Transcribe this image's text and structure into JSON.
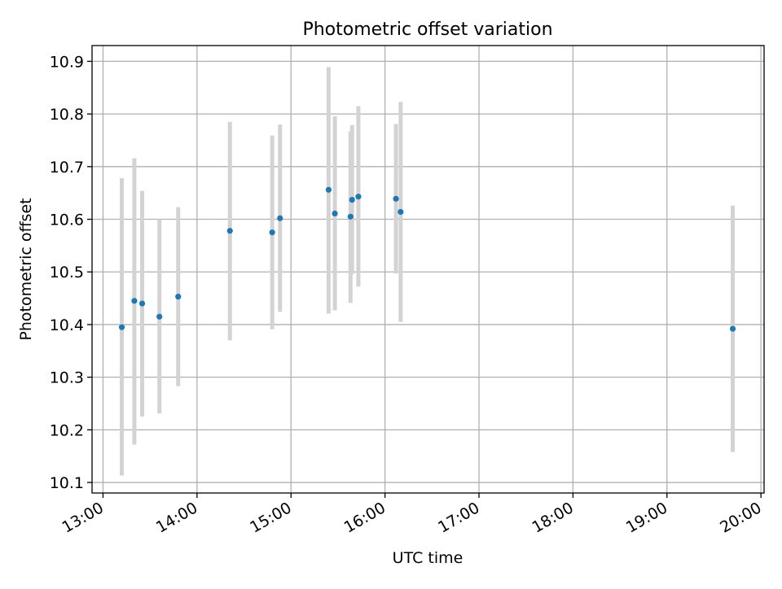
{
  "chart_data": {
    "type": "scatter",
    "title": "Photometric offset variation",
    "xlabel": "UTC time",
    "ylabel": "Photometric offset",
    "x_ticks": [
      "13:00",
      "14:00",
      "15:00",
      "16:00",
      "17:00",
      "18:00",
      "19:00",
      "20:00"
    ],
    "y_ticks": [
      "10.1",
      "10.2",
      "10.3",
      "10.4",
      "10.5",
      "10.6",
      "10.7",
      "10.8",
      "10.9"
    ],
    "xlim": [
      "12:53",
      "20:02"
    ],
    "ylim": [
      10.08,
      10.93
    ],
    "grid": true,
    "marker_color": "#1f77b4",
    "errorbar_color": "#d3d3d3",
    "points": [
      {
        "time": "13:12",
        "y": 10.395,
        "err_low": 10.113,
        "err_high": 10.678
      },
      {
        "time": "13:20",
        "y": 10.445,
        "err_low": 10.172,
        "err_high": 10.716
      },
      {
        "time": "13:25",
        "y": 10.44,
        "err_low": 10.225,
        "err_high": 10.654
      },
      {
        "time": "13:36",
        "y": 10.415,
        "err_low": 10.231,
        "err_high": 10.6
      },
      {
        "time": "13:48",
        "y": 10.453,
        "err_low": 10.283,
        "err_high": 10.623
      },
      {
        "time": "14:21",
        "y": 10.578,
        "err_low": 10.37,
        "err_high": 10.785
      },
      {
        "time": "14:48",
        "y": 10.575,
        "err_low": 10.391,
        "err_high": 10.759
      },
      {
        "time": "14:53",
        "y": 10.602,
        "err_low": 10.424,
        "err_high": 10.78
      },
      {
        "time": "15:24",
        "y": 10.656,
        "err_low": 10.421,
        "err_high": 10.889
      },
      {
        "time": "15:28",
        "y": 10.611,
        "err_low": 10.427,
        "err_high": 10.796
      },
      {
        "time": "15:38",
        "y": 10.605,
        "err_low": 10.441,
        "err_high": 10.767
      },
      {
        "time": "15:39",
        "y": 10.637,
        "err_low": 10.496,
        "err_high": 10.779
      },
      {
        "time": "15:43",
        "y": 10.643,
        "err_low": 10.472,
        "err_high": 10.815
      },
      {
        "time": "16:07",
        "y": 10.639,
        "err_low": 10.497,
        "err_high": 10.781
      },
      {
        "time": "16:10",
        "y": 10.614,
        "err_low": 10.405,
        "err_high": 10.823
      },
      {
        "time": "19:42",
        "y": 10.392,
        "err_low": 10.158,
        "err_high": 10.626
      }
    ]
  }
}
